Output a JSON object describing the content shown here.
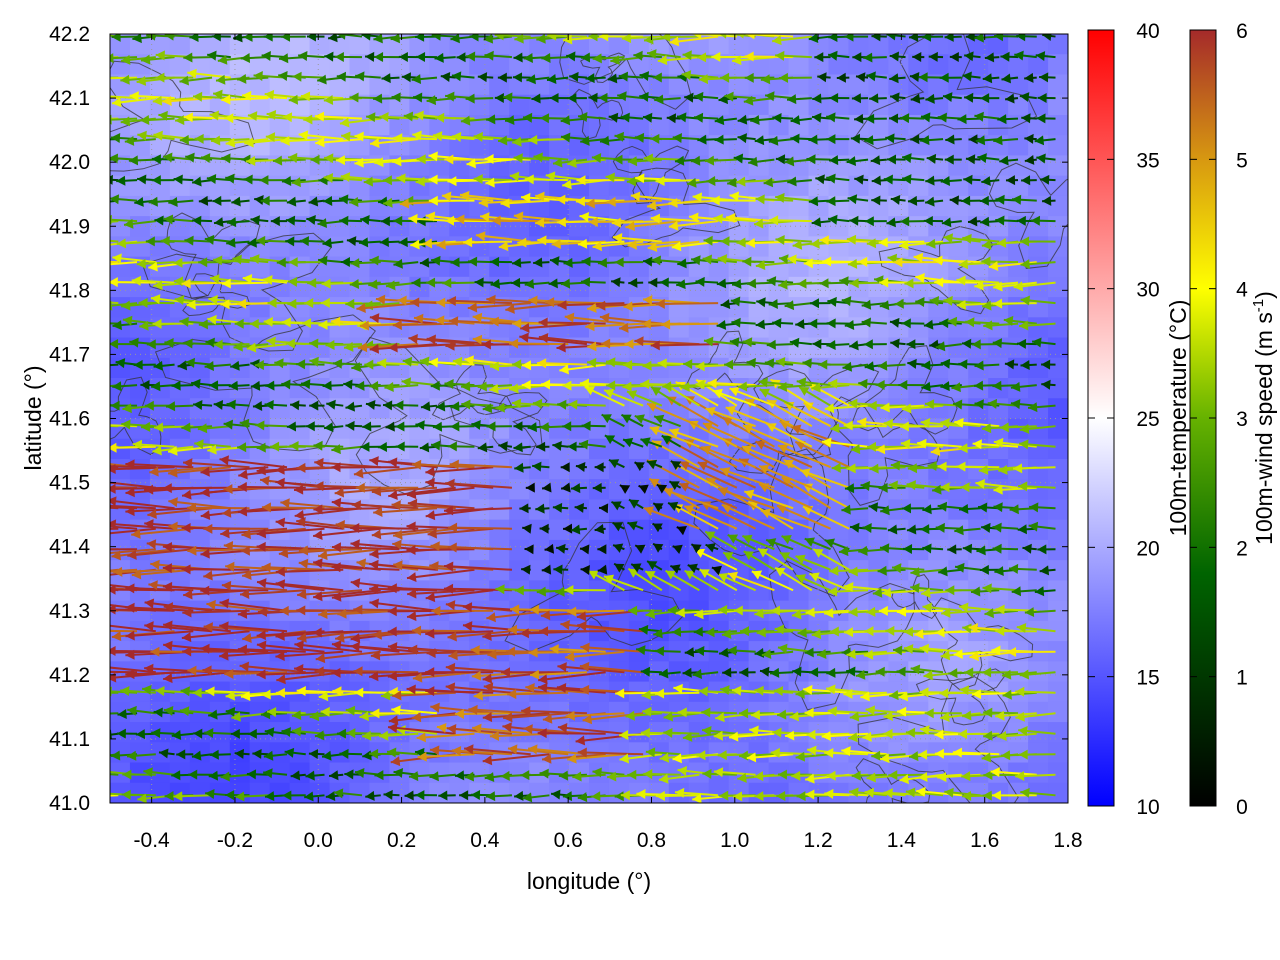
{
  "chart_data": {
    "type": "vector-field-heatmap",
    "xlabel": "longitude (°)",
    "ylabel": "latitude (°)",
    "xlim": [
      -0.5,
      1.8
    ],
    "ylim": [
      41.0,
      42.2
    ],
    "xticks": [
      "-0.4",
      "-0.2",
      "0.0",
      "0.2",
      "0.4",
      "0.6",
      "0.8",
      "1.0",
      "1.2",
      "1.4",
      "1.6",
      "1.8"
    ],
    "yticks": [
      "41.0",
      "41.1",
      "41.2",
      "41.3",
      "41.4",
      "41.5",
      "41.6",
      "41.7",
      "41.8",
      "41.9",
      "42.0",
      "42.1",
      "42.2"
    ],
    "temperature_colorbar": {
      "label": "100m-temperature (°C)",
      "range": [
        10,
        40
      ],
      "ticks": [
        "10",
        "15",
        "20",
        "25",
        "30",
        "35",
        "40"
      ],
      "colors": [
        "#0000ff",
        "#ffffff",
        "#ff0000"
      ]
    },
    "wind_colorbar": {
      "label": "100m-wind speed (m s-1)",
      "label_main": "100m-wind speed (m s",
      "label_sup": "-1",
      "label_end": ")",
      "range": [
        0,
        6
      ],
      "ticks": [
        "0",
        "1",
        "2",
        "3",
        "4",
        "5",
        "6"
      ],
      "colors": [
        "#000000",
        "#006400",
        "#66b200",
        "#ffff00",
        "#d89a10",
        "#a52a2a"
      ]
    },
    "field_temperature_range": [
      15,
      22
    ],
    "wind_direction": "mostly easterly (arrows pointing west)",
    "wind_regions": [
      {
        "lon": [
          -0.5,
          0.5
        ],
        "lat": [
          41.2,
          41.55
        ],
        "speed": 6.0
      },
      {
        "lon": [
          0.3,
          0.8
        ],
        "lat": [
          41.05,
          41.3
        ],
        "speed": 5.5
      },
      {
        "lon": [
          0.2,
          1.0
        ],
        "lat": [
          41.7,
          41.8
        ],
        "speed": 5.5
      },
      {
        "lon": [
          0.9,
          1.3
        ],
        "lat": [
          41.4,
          41.6
        ],
        "speed": 5.0
      },
      {
        "lon": [
          0.3,
          1.0
        ],
        "lat": [
          41.85,
          41.95
        ],
        "speed": 4.5
      },
      {
        "lon": [
          0.8,
          1.8
        ],
        "lat": [
          41.0,
          41.2
        ],
        "speed": 3.5
      },
      {
        "lon": [
          0.4,
          1.0
        ],
        "lat": [
          41.35,
          41.55
        ],
        "speed": 0.8
      },
      {
        "lon": [
          1.2,
          1.8
        ],
        "lat": [
          41.9,
          42.2
        ],
        "speed": 1.5
      }
    ]
  }
}
